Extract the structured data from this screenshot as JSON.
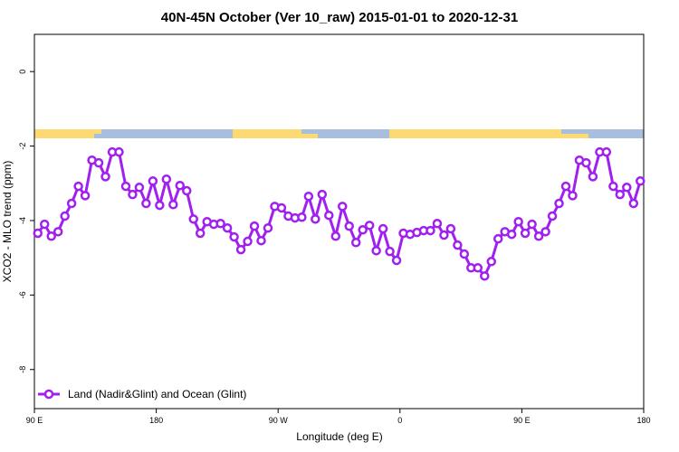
{
  "chart_data": {
    "type": "line",
    "title": "40N-45N October (Ver 10_raw)   2015-01-01 to 2020-12-31",
    "xlabel": "Longitude (deg E)",
    "ylabel": "XCO2 - MLO trend (ppm)",
    "x": [
      92.5,
      97.5,
      102.5,
      107.5,
      112.5,
      117.5,
      122.5,
      127.5,
      132.5,
      137.5,
      142.5,
      147.5,
      152.5,
      157.5,
      162.5,
      167.5,
      172.5,
      177.5,
      182.5,
      187.5,
      192.5,
      197.5,
      202.5,
      207.5,
      212.5,
      217.5,
      222.5,
      227.5,
      232.5,
      237.5,
      242.5,
      247.5,
      252.5,
      257.5,
      262.5,
      267.5,
      272.5,
      277.5,
      282.5,
      287.5,
      292.5,
      297.5,
      302.5,
      307.5,
      312.5,
      317.5,
      322.5,
      327.5,
      332.5,
      337.5,
      342.5,
      347.5,
      352.5,
      357.5,
      362.5,
      367.5,
      372.5,
      377.5,
      382.5,
      387.5,
      392.5,
      397.5,
      402.5,
      407.5,
      412.5,
      417.5,
      422.5,
      427.5,
      432.5,
      437.5,
      442.5,
      447.5,
      452.5,
      457.5,
      462.5,
      467.5,
      472.5,
      477.5,
      482.5,
      487.5,
      492.5,
      497.5,
      502.5,
      507.5,
      512.5,
      517.5,
      522.5,
      527.5,
      532.5,
      537.5
    ],
    "series": [
      {
        "name": "Land (Nadir&Glint) and Ocean (Glint)",
        "color": "#a020f0",
        "values": [
          -4.34,
          -4.1,
          -4.42,
          -4.3,
          -3.88,
          -3.54,
          -3.08,
          -3.33,
          -2.38,
          -2.45,
          -2.82,
          -2.16,
          -2.16,
          -3.08,
          -3.3,
          -3.11,
          -3.54,
          -2.94,
          -3.59,
          -2.89,
          -3.57,
          -3.06,
          -3.2,
          -3.96,
          -4.34,
          -4.03,
          -4.1,
          -4.08,
          -4.2,
          -4.44,
          -4.78,
          -4.56,
          -4.15,
          -4.54,
          -4.2,
          -3.62,
          -3.66,
          -3.88,
          -3.93,
          -3.91,
          -3.35,
          -3.96,
          -3.3,
          -3.86,
          -4.42,
          -3.62,
          -4.15,
          -4.59,
          -4.25,
          -4.13,
          -4.81,
          -4.22,
          -4.83,
          -5.07,
          -4.34,
          -4.37,
          -4.32,
          -4.27,
          -4.27,
          -4.08,
          -4.39,
          -4.22,
          -4.66,
          -4.9,
          -5.27,
          -5.27,
          -5.49,
          -5.1,
          -4.49,
          -4.3,
          -4.37,
          -4.03,
          -4.34,
          -4.1,
          -4.42,
          -4.3,
          -3.88,
          -3.54,
          -3.08,
          -3.33,
          -2.38,
          -2.45,
          -2.82,
          -2.16,
          -2.16,
          -3.08,
          -3.3,
          -3.11,
          -3.54,
          -2.94
        ]
      }
    ],
    "xlim": [
      90,
      540
    ],
    "xticks": [
      {
        "value": 90,
        "label": "90 E"
      },
      180,
      {
        "value": 270,
        "label": "90 W"
      },
      {
        "value": 360,
        "label": "0"
      },
      {
        "value": 450,
        "label": "90 E"
      },
      {
        "value": 540,
        "label": "180"
      }
    ],
    "ylim": [
      -9.05,
      1.0
    ],
    "yticks": [
      0,
      -2,
      -4,
      -6,
      -8
    ],
    "legend": "bottomleft"
  }
}
